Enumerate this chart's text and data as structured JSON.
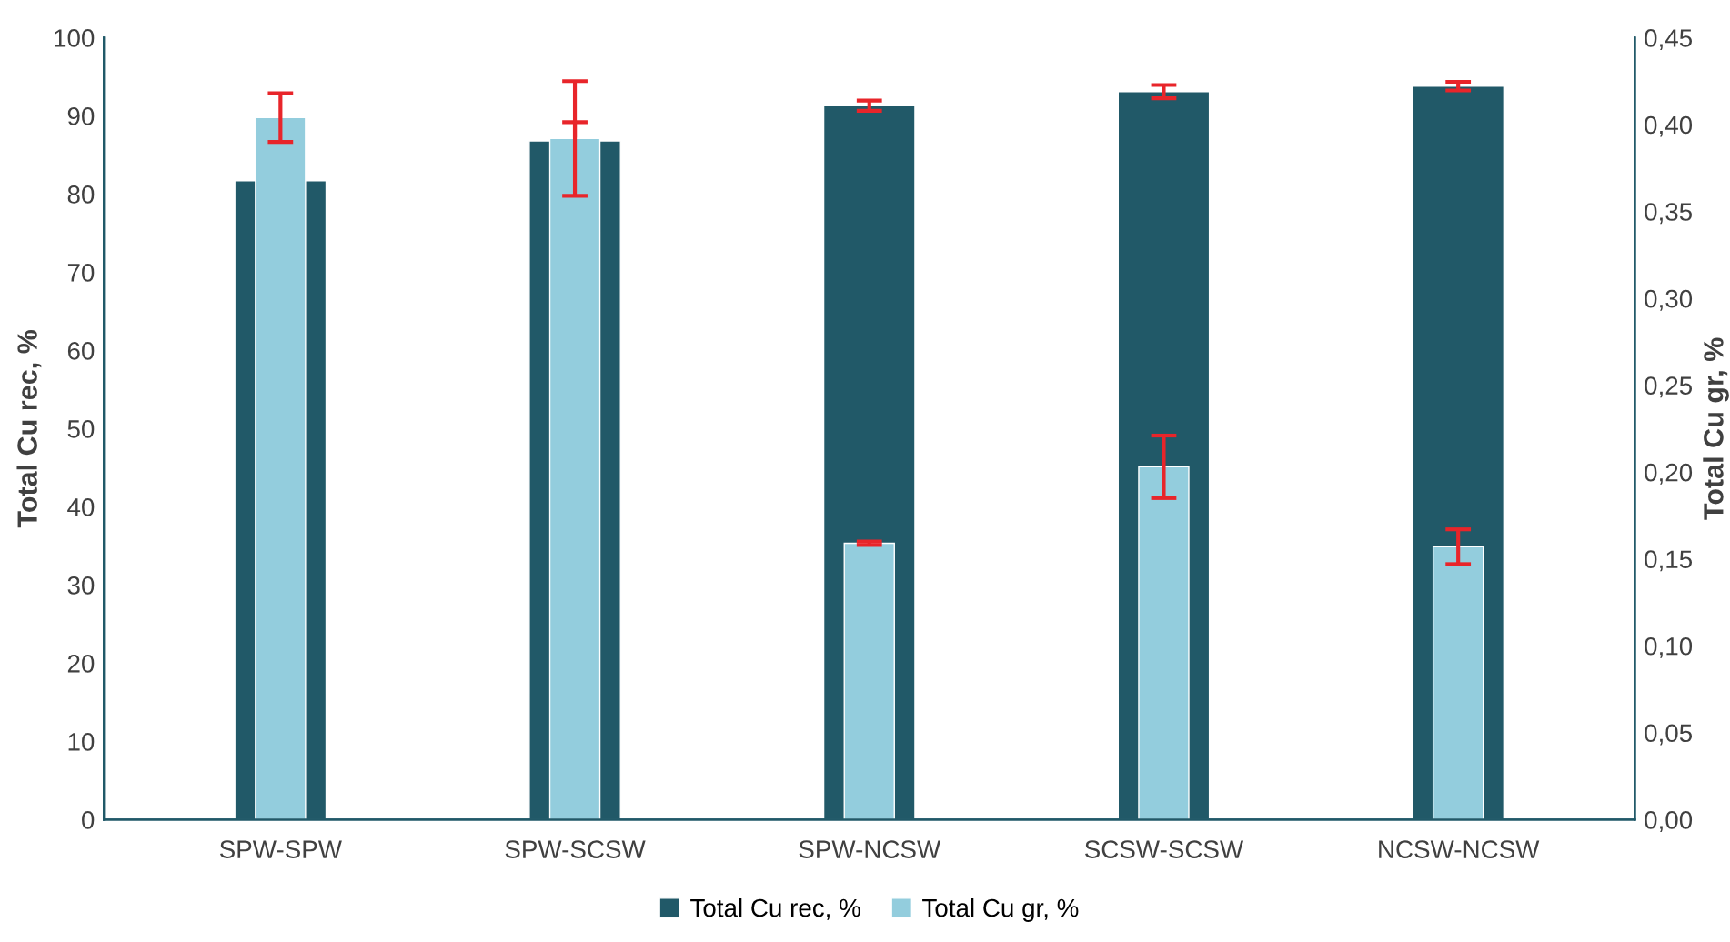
{
  "chart_data": {
    "type": "bar",
    "ylabel": "Total Cu rec, %",
    "y2label": "Total Cu gr, %",
    "categories": [
      "SPW-SPW",
      "SPW-SCSW",
      "SPW-NCSW",
      "SCSW-SCSW",
      "NCSW-NCSW"
    ],
    "series": [
      {
        "name": "Total Cu rec, %",
        "color": "#215968",
        "values": [
          81.7,
          86.8,
          91.3,
          93.1,
          93.8
        ],
        "errors": [
          null,
          2.4,
          0.65,
          0.85,
          0.55
        ]
      },
      {
        "name": "Total Cu gr, %",
        "color": "#93cddd",
        "axis": "y2",
        "values": [
          0.404,
          0.392,
          0.159,
          0.203,
          0.157
        ],
        "errors": [
          0.014,
          0.033,
          0.001,
          0.018,
          0.01
        ]
      }
    ],
    "ylim": [
      0,
      100
    ],
    "yticks": [
      0,
      10,
      20,
      30,
      40,
      50,
      60,
      70,
      80,
      90,
      100
    ],
    "y2lim": [
      0,
      0.45
    ],
    "y2ticks": [
      {
        "value": 0,
        "label": "0,00"
      },
      {
        "value": 0.05,
        "label": "0,05"
      },
      {
        "value": 0.1,
        "label": "0,10"
      },
      {
        "value": 0.15,
        "label": "0,15"
      },
      {
        "value": 0.2,
        "label": "0,20"
      },
      {
        "value": 0.25,
        "label": "0,25"
      },
      {
        "value": 0.3,
        "label": "0,30"
      },
      {
        "value": 0.35,
        "label": "0,35"
      },
      {
        "value": 0.4,
        "label": "0,40"
      },
      {
        "value": 0.45,
        "label": "0,45"
      }
    ],
    "grid": false,
    "legend": "bottom"
  }
}
